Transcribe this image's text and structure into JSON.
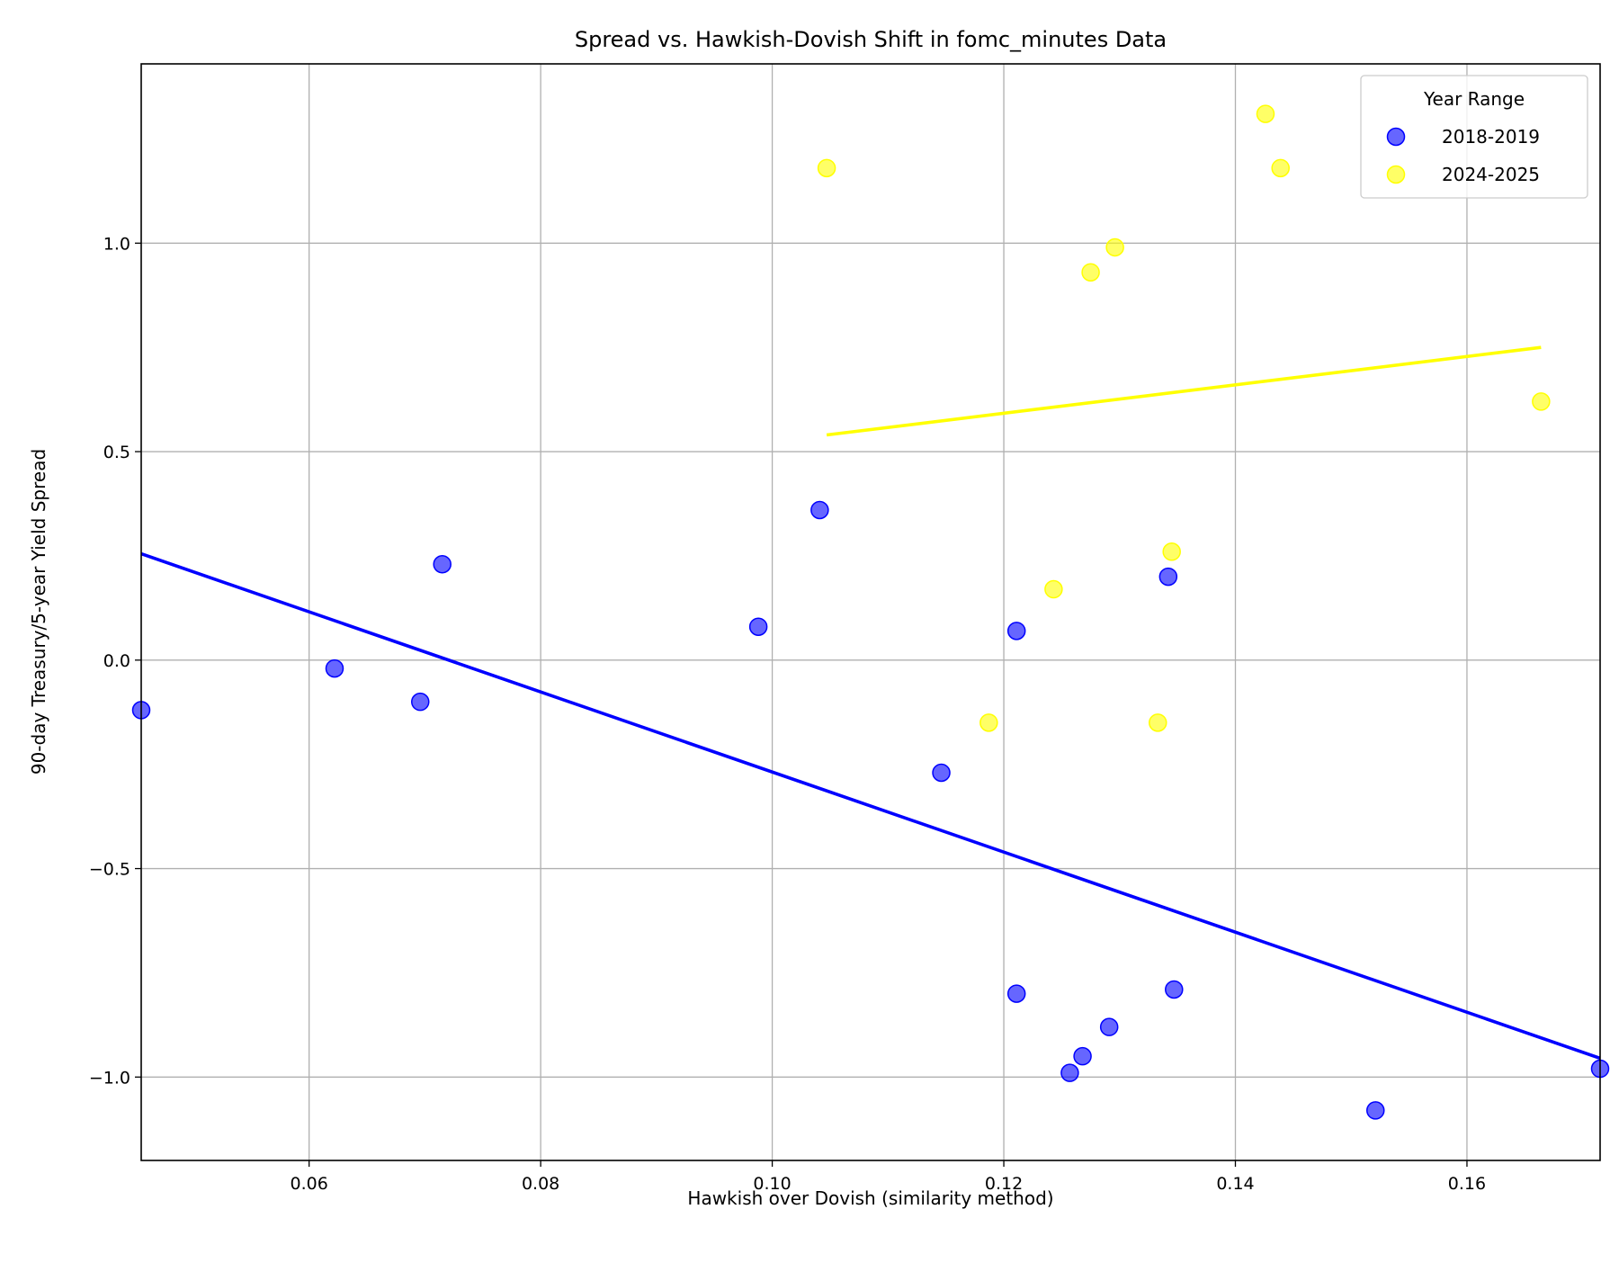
{
  "chart_data": {
    "type": "scatter",
    "title": "Spread vs. Hawkish-Dovish Shift in fomc_minutes Data",
    "xlabel": "Hawkish over Dovish (similarity method)",
    "ylabel": "90-day Treasury/5-year Yield Spread",
    "xlim": [
      0.0455,
      0.1715
    ],
    "ylim": [
      -1.2,
      1.43
    ],
    "x_ticks": [
      0.06,
      0.08,
      0.1,
      0.12,
      0.14,
      0.16
    ],
    "x_tick_labels": [
      "0.06",
      "0.08",
      "0.10",
      "0.12",
      "0.14",
      "0.16"
    ],
    "y_ticks": [
      -1.0,
      -0.5,
      0.0,
      0.5,
      1.0
    ],
    "y_tick_labels": [
      "−1.0",
      "−0.5",
      "0.0",
      "0.5",
      "1.0"
    ],
    "grid": true,
    "legend": {
      "title": "Year Range",
      "placement": "top-right"
    },
    "series": [
      {
        "name": "2018-2019",
        "color": "#0000ff",
        "points": [
          {
            "x": 0.0455,
            "y": -0.12
          },
          {
            "x": 0.0622,
            "y": -0.02
          },
          {
            "x": 0.0696,
            "y": -0.1
          },
          {
            "x": 0.0715,
            "y": 0.23
          },
          {
            "x": 0.0988,
            "y": 0.08
          },
          {
            "x": 0.1041,
            "y": 0.36
          },
          {
            "x": 0.1146,
            "y": -0.27
          },
          {
            "x": 0.1211,
            "y": 0.07
          },
          {
            "x": 0.1211,
            "y": -0.8
          },
          {
            "x": 0.1257,
            "y": -0.99
          },
          {
            "x": 0.1268,
            "y": -0.95
          },
          {
            "x": 0.1291,
            "y": -0.88
          },
          {
            "x": 0.1342,
            "y": 0.2
          },
          {
            "x": 0.1347,
            "y": -0.79
          },
          {
            "x": 0.1521,
            "y": -1.08
          },
          {
            "x": 0.1715,
            "y": -0.98
          }
        ],
        "trend": {
          "x": [
            0.0455,
            0.1715
          ],
          "y": [
            0.255,
            -0.955
          ]
        }
      },
      {
        "name": "2024-2025",
        "color": "#ffff00",
        "points": [
          {
            "x": 0.1047,
            "y": 1.18
          },
          {
            "x": 0.1187,
            "y": -0.15
          },
          {
            "x": 0.1243,
            "y": 0.17
          },
          {
            "x": 0.1275,
            "y": 0.93
          },
          {
            "x": 0.1296,
            "y": 0.99
          },
          {
            "x": 0.1333,
            "y": -0.15
          },
          {
            "x": 0.1345,
            "y": 0.26
          },
          {
            "x": 0.1426,
            "y": 1.31
          },
          {
            "x": 0.1439,
            "y": 1.18
          },
          {
            "x": 0.1664,
            "y": 0.62
          }
        ],
        "trend": {
          "x": [
            0.1047,
            0.1664
          ],
          "y": [
            0.54,
            0.75
          ]
        }
      }
    ]
  }
}
